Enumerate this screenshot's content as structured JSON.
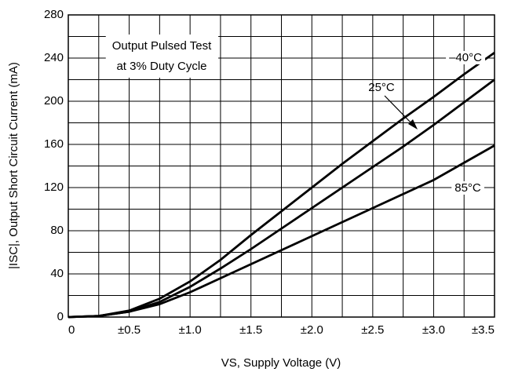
{
  "chart_data": {
    "type": "line",
    "x_label": "VS, Supply Voltage (V)",
    "y_label": "|ISC|, Output Short Circuit Current (mA)",
    "annotation": [
      "Output Pulsed Test",
      "at 3% Duty Cycle"
    ],
    "x": [
      0,
      0.25,
      0.5,
      0.75,
      1.0,
      1.25,
      1.5,
      1.75,
      2.0,
      2.25,
      2.5,
      2.75,
      3.0,
      3.25,
      3.5
    ],
    "series": [
      {
        "name": "–40°C",
        "color": "#000000",
        "values": [
          0,
          1,
          6,
          17,
          33,
          53,
          76,
          98,
          120,
          142,
          163,
          184,
          204,
          225,
          245
        ]
      },
      {
        "name": "25°C",
        "color": "#000000",
        "values": [
          0,
          1,
          5,
          14,
          28,
          45,
          63,
          82,
          101,
          120,
          139,
          158,
          178,
          199,
          220
        ]
      },
      {
        "name": "85°C",
        "color": "#000000",
        "values": [
          0,
          1,
          5,
          12,
          23,
          36,
          49,
          62,
          75,
          88,
          101,
          114,
          127,
          143,
          159
        ]
      }
    ],
    "xlim": [
      0,
      3.5
    ],
    "ylim": [
      0,
      280
    ],
    "xticks": [
      0,
      {
        "value": 0.5,
        "label": "±0.5"
      },
      {
        "value": 1.0,
        "label": "±1.0"
      },
      {
        "value": 1.5,
        "label": "±1.5"
      },
      {
        "value": 2.0,
        "label": "±2.0"
      },
      {
        "value": 2.5,
        "label": "±2.5"
      },
      {
        "value": 3.0,
        "label": "±3.0"
      },
      {
        "value": 3.5,
        "label": "±3.5"
      }
    ],
    "yticks": [
      0,
      40,
      80,
      120,
      160,
      200,
      240,
      280
    ],
    "xminorticks": [
      0.25,
      0.75,
      1.25,
      1.75,
      2.25,
      2.75,
      3.25
    ],
    "yminorticks": [
      20,
      60,
      100,
      140,
      180,
      220,
      260
    ],
    "grid": true
  }
}
